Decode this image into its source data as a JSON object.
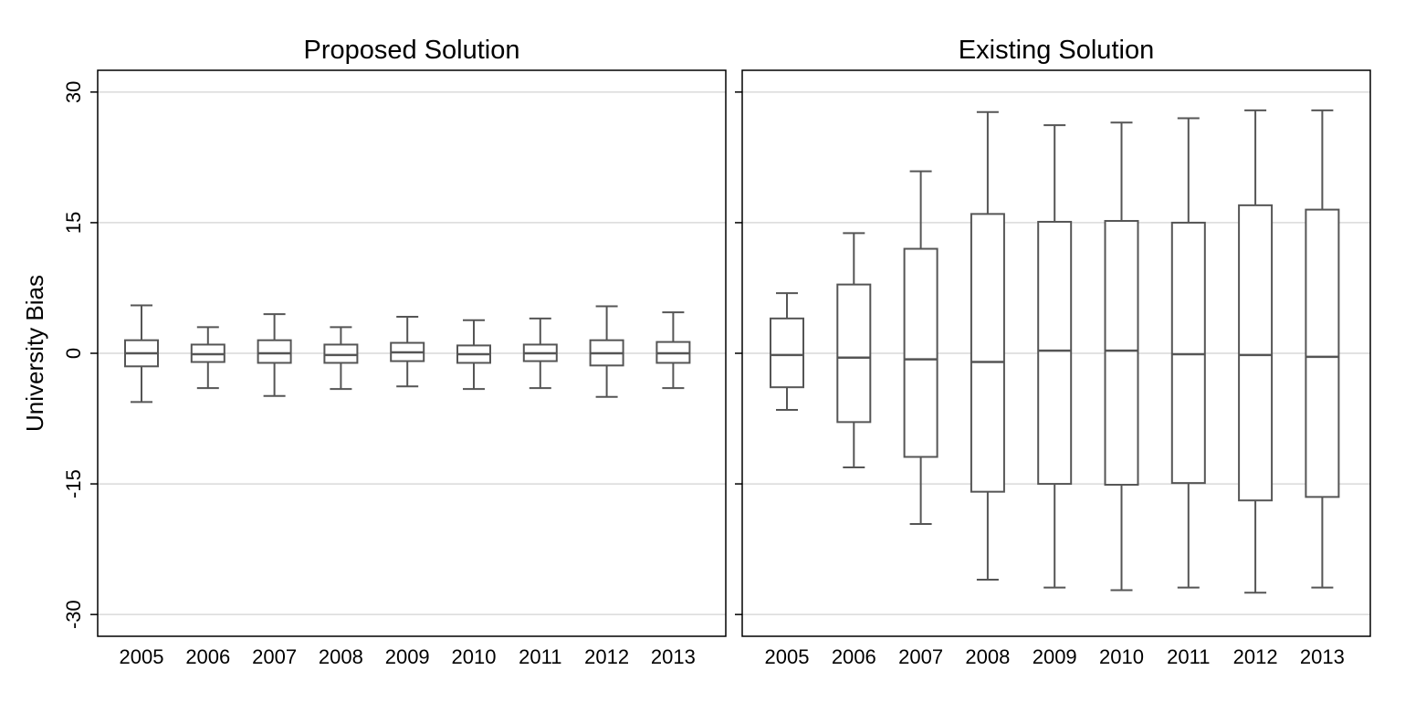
{
  "chart_data": [
    {
      "type": "box",
      "title": "Proposed Solution",
      "xlabel": "",
      "ylabel": "University Bias",
      "ylim": [
        -32.5,
        32.5
      ],
      "yticks": [
        30,
        15,
        0,
        -15,
        -30
      ],
      "ytick_labels": [
        "30",
        "15",
        "0",
        "-15",
        "-30"
      ],
      "grid": true,
      "categories": [
        "2005",
        "2006",
        "2007",
        "2008",
        "2009",
        "2010",
        "2011",
        "2012",
        "2013"
      ],
      "boxes": [
        {
          "min": -5.6,
          "q1": -1.5,
          "median": 0.0,
          "q3": 1.5,
          "max": 5.5
        },
        {
          "min": -4.0,
          "q1": -1.0,
          "median": -0.1,
          "q3": 1.0,
          "max": 3.0
        },
        {
          "min": -4.9,
          "q1": -1.1,
          "median": 0.0,
          "q3": 1.5,
          "max": 4.5
        },
        {
          "min": -4.1,
          "q1": -1.1,
          "median": -0.2,
          "q3": 1.0,
          "max": 3.0
        },
        {
          "min": -3.8,
          "q1": -0.9,
          "median": 0.1,
          "q3": 1.2,
          "max": 4.2
        },
        {
          "min": -4.1,
          "q1": -1.1,
          "median": -0.1,
          "q3": 0.9,
          "max": 3.8
        },
        {
          "min": -4.0,
          "q1": -0.9,
          "median": 0.0,
          "q3": 1.0,
          "max": 4.0
        },
        {
          "min": -5.0,
          "q1": -1.4,
          "median": 0.0,
          "q3": 1.5,
          "max": 5.4
        },
        {
          "min": -4.0,
          "q1": -1.1,
          "median": 0.0,
          "q3": 1.3,
          "max": 4.7
        }
      ]
    },
    {
      "type": "box",
      "title": "Existing Solution",
      "xlabel": "",
      "ylabel": "",
      "ylim": [
        -32.5,
        32.5
      ],
      "yticks": [
        30,
        15,
        0,
        -15,
        -30
      ],
      "grid": true,
      "categories": [
        "2005",
        "2006",
        "2007",
        "2008",
        "2009",
        "2010",
        "2011",
        "2012",
        "2013"
      ],
      "boxes": [
        {
          "min": -6.5,
          "q1": -3.9,
          "median": -0.2,
          "q3": 4.0,
          "max": 6.9
        },
        {
          "min": -13.1,
          "q1": -7.9,
          "median": -0.5,
          "q3": 7.9,
          "max": 13.8
        },
        {
          "min": -19.6,
          "q1": -11.9,
          "median": -0.7,
          "q3": 12.0,
          "max": 20.9
        },
        {
          "min": -26.0,
          "q1": -15.9,
          "median": -1.0,
          "q3": 16.0,
          "max": 27.7
        },
        {
          "min": -26.9,
          "q1": -15.0,
          "median": 0.3,
          "q3": 15.1,
          "max": 26.2
        },
        {
          "min": -27.2,
          "q1": -15.1,
          "median": 0.3,
          "q3": 15.2,
          "max": 26.5
        },
        {
          "min": -26.9,
          "q1": -14.9,
          "median": -0.1,
          "q3": 15.0,
          "max": 27.0
        },
        {
          "min": -27.5,
          "q1": -16.9,
          "median": -0.2,
          "q3": 17.0,
          "max": 27.9
        },
        {
          "min": -26.9,
          "q1": -16.5,
          "median": -0.4,
          "q3": 16.5,
          "max": 27.9
        }
      ]
    }
  ]
}
